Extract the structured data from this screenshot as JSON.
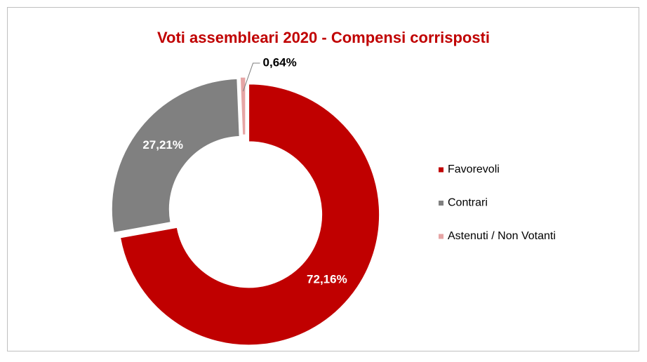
{
  "chart_data": {
    "type": "donut",
    "title": "Voti assembleari 2020 - Compensi corrisposti",
    "categories": [
      "Favorevoli",
      "Contrari",
      "Astenuti / Non Votanti"
    ],
    "values": [
      72.16,
      27.21,
      0.64
    ],
    "value_labels": [
      "72,16%",
      "27,21%",
      "0,64%"
    ],
    "colors": [
      "#c00000",
      "#808080",
      "#e6a5a5"
    ],
    "legend": "right"
  }
}
